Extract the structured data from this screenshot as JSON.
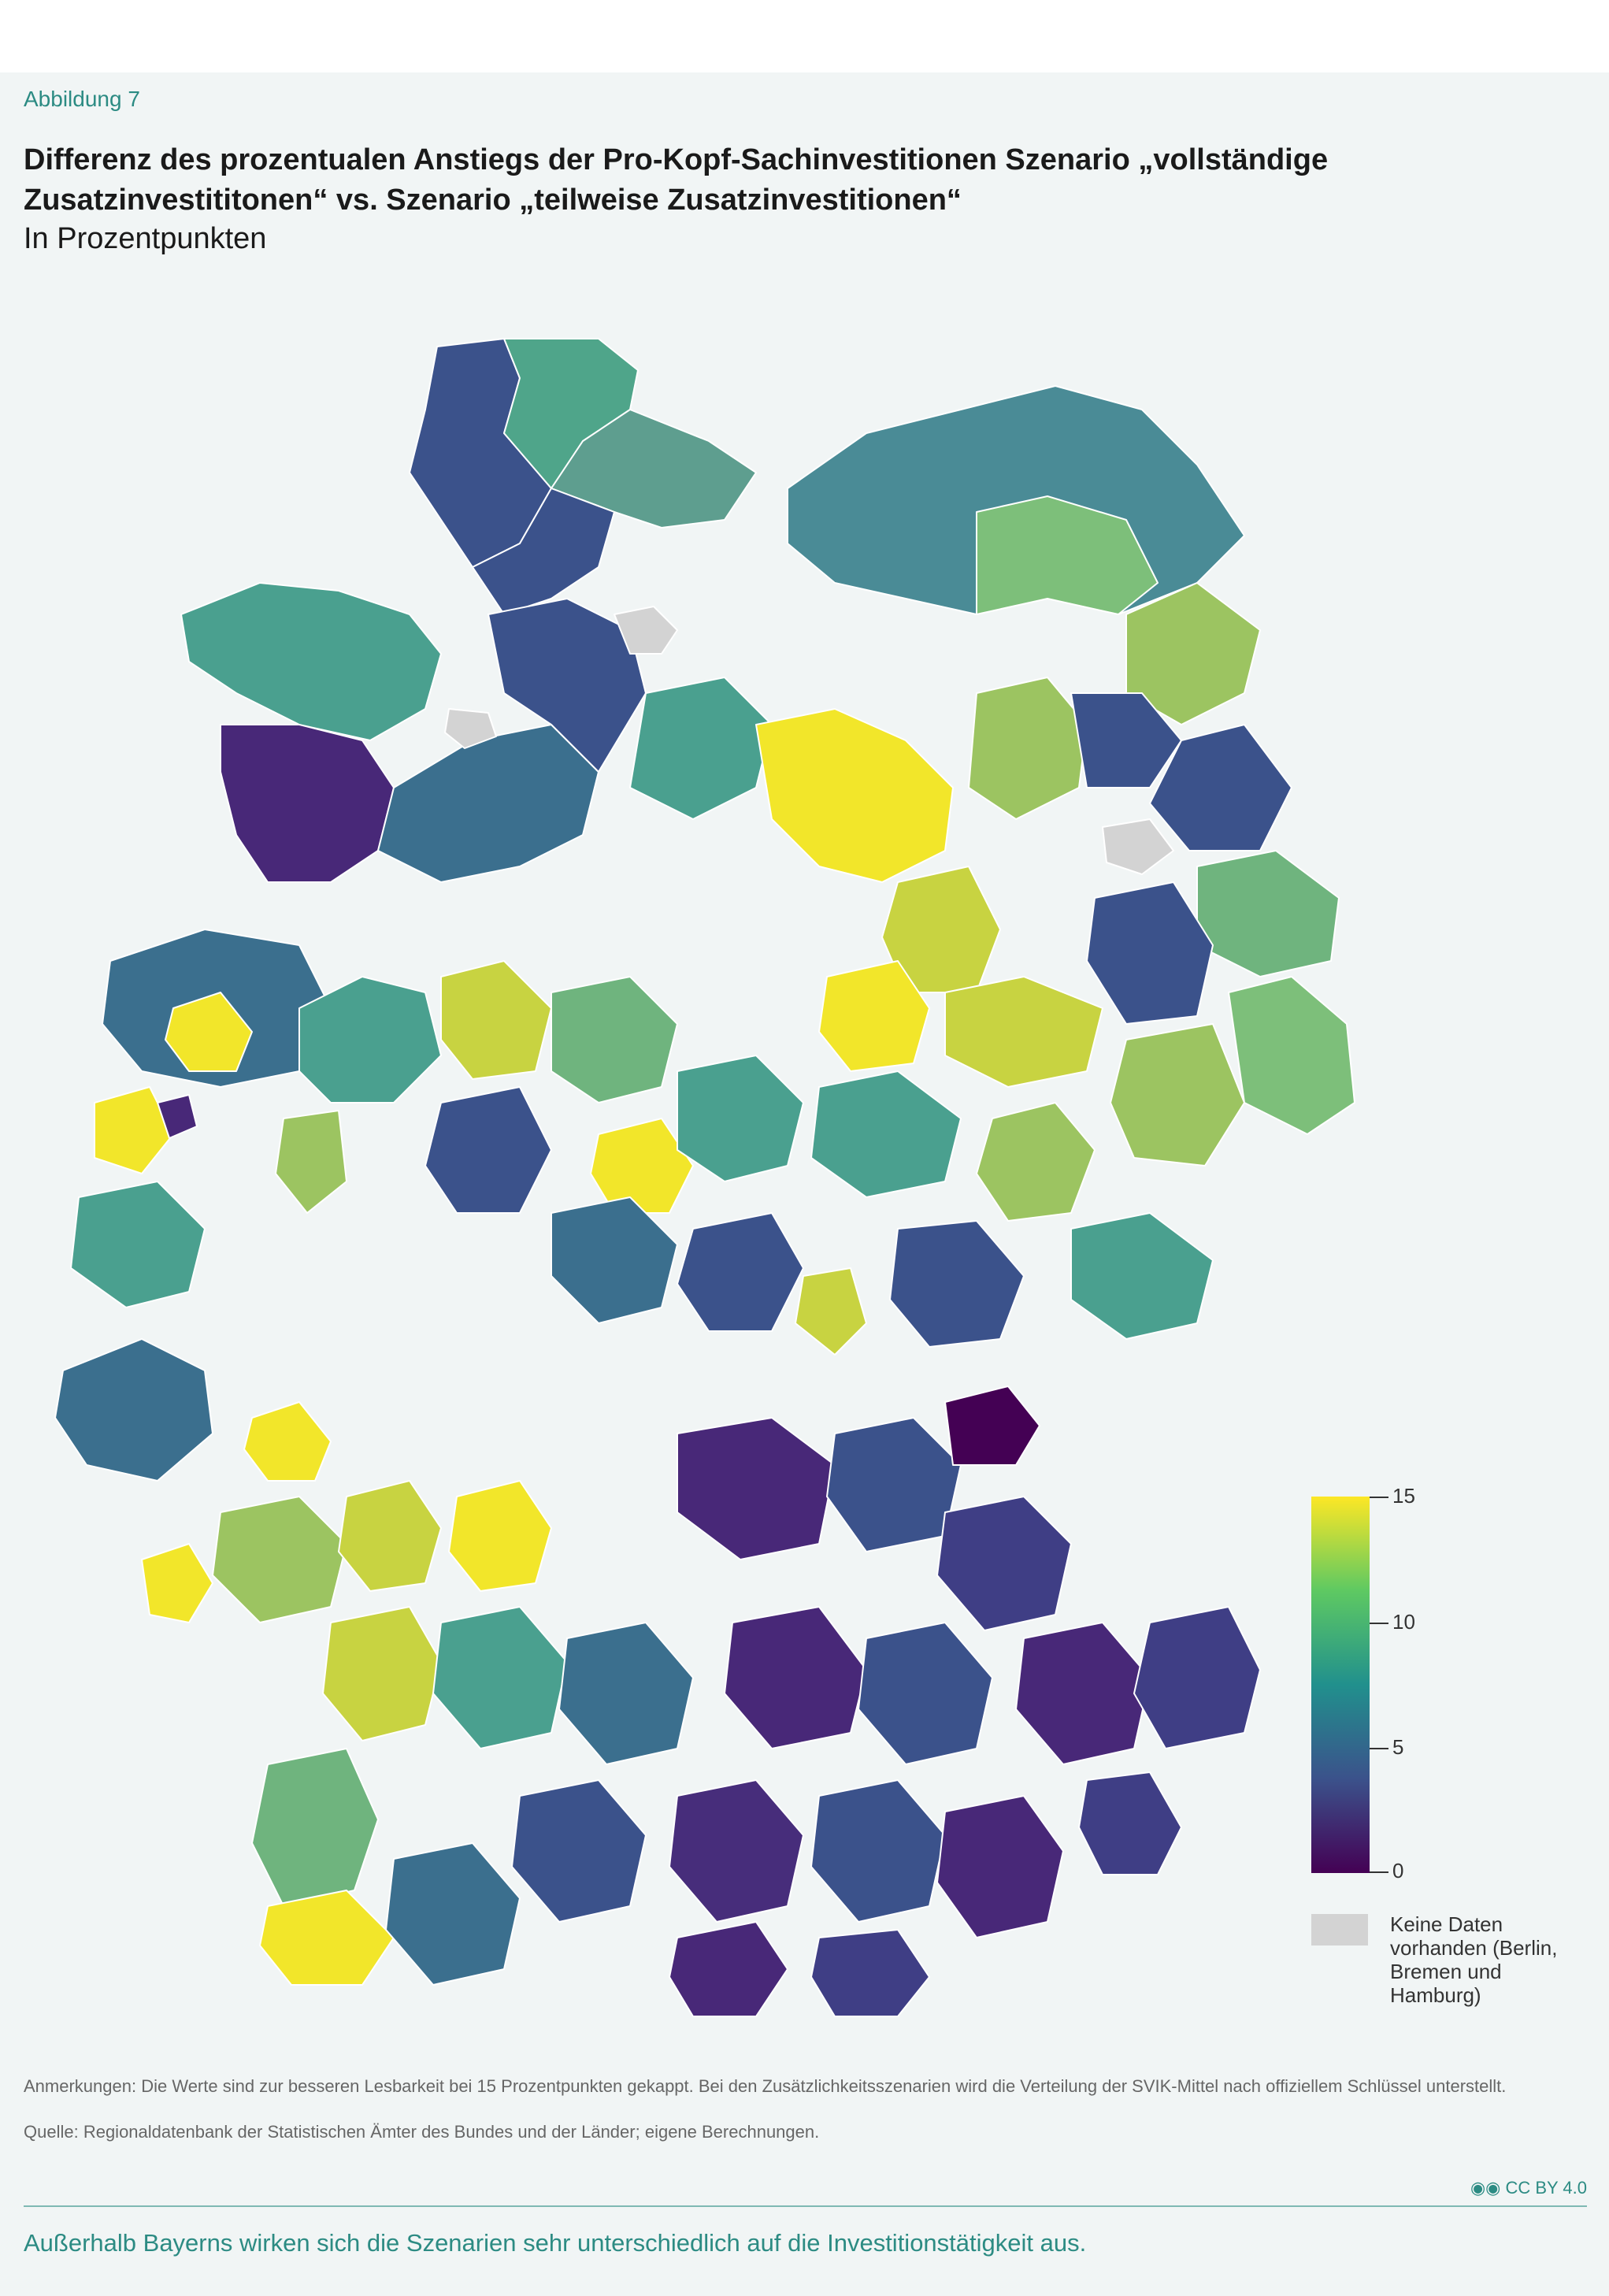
{
  "figure_label": "Abbildung 7",
  "title": "Differenz des prozentualen Anstiegs der Pro-Kopf-Sachinvestitionen Szenario „vollständige Zusatzinvestititonen“ vs. Szenario „teilweise Zusatzinvestitionen“",
  "subtitle": "In Prozentpunkten",
  "legend": {
    "ticks": [
      "15",
      "10",
      "5",
      "0"
    ],
    "no_data_label": "Keine Daten vorhanden (Berlin, Bremen und Hamburg)",
    "color_scale": [
      "#440154",
      "#3b528b",
      "#21908d",
      "#5ec962",
      "#fde725"
    ],
    "no_data_color": "#d3d3d3",
    "min": 0,
    "max": 15
  },
  "notes": {
    "remark": "Anmerkungen: Die Werte sind zur besseren Lesbarkeit bei 15 Prozentpunkten gekappt. Bei den Zusätzlichkeitsszenarien wird die Verteilung der SVIK-Mittel nach offiziellem Schlüssel unterstellt.",
    "source": "Quelle: Regionaldatenbank der Statistischen Ämter des Bundes und der Länder; eigene Berechnungen."
  },
  "license": "CC BY 4.0",
  "footer": "Außerhalb Bayerns wirken sich die Szenarien sehr unterschiedlich auf die Investitionstätigkeit aus.",
  "accent_color": "#2c8b83"
}
